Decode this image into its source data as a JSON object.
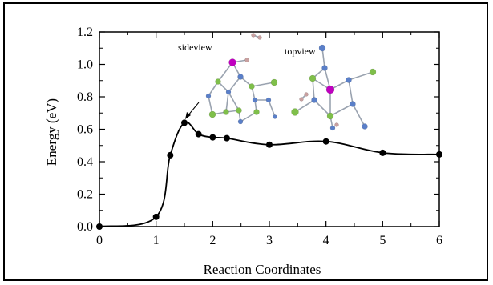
{
  "chart_data": {
    "type": "line",
    "title": "",
    "xlabel": "Reaction Coordinates",
    "ylabel": "Energy (eV)",
    "xlim": [
      0,
      6
    ],
    "ylim": [
      0,
      1.2
    ],
    "x_ticks": [
      0,
      1,
      2,
      3,
      4,
      5,
      6
    ],
    "x_tick_labels": [
      "0",
      "1",
      "2",
      "3",
      "4",
      "5",
      "6"
    ],
    "y_ticks": [
      0,
      0.2,
      0.4,
      0.6,
      0.8,
      1.0,
      1.2
    ],
    "y_tick_labels": [
      "0.0",
      "0.2",
      "0.4",
      "0.6",
      "0.8",
      "1.0",
      "1.2"
    ],
    "grid": false,
    "series": [
      {
        "x": [
          0,
          1,
          1.25,
          1.5,
          1.75,
          2,
          2.25,
          3,
          4,
          5,
          6
        ],
        "y": [
          0.0,
          0.06,
          0.44,
          0.64,
          0.57,
          0.55,
          0.545,
          0.505,
          0.525,
          0.455,
          0.445
        ]
      }
    ],
    "annotations": [
      {
        "text": "sideview"
      },
      {
        "text": "topview"
      }
    ],
    "colors": {
      "line": "#000000",
      "marker": "#000000",
      "atom_green": "#7fbf4a",
      "atom_blue": "#5a7fc8",
      "atom_magenta": "#c000c0",
      "atom_pink": "#c9a0a0"
    }
  }
}
